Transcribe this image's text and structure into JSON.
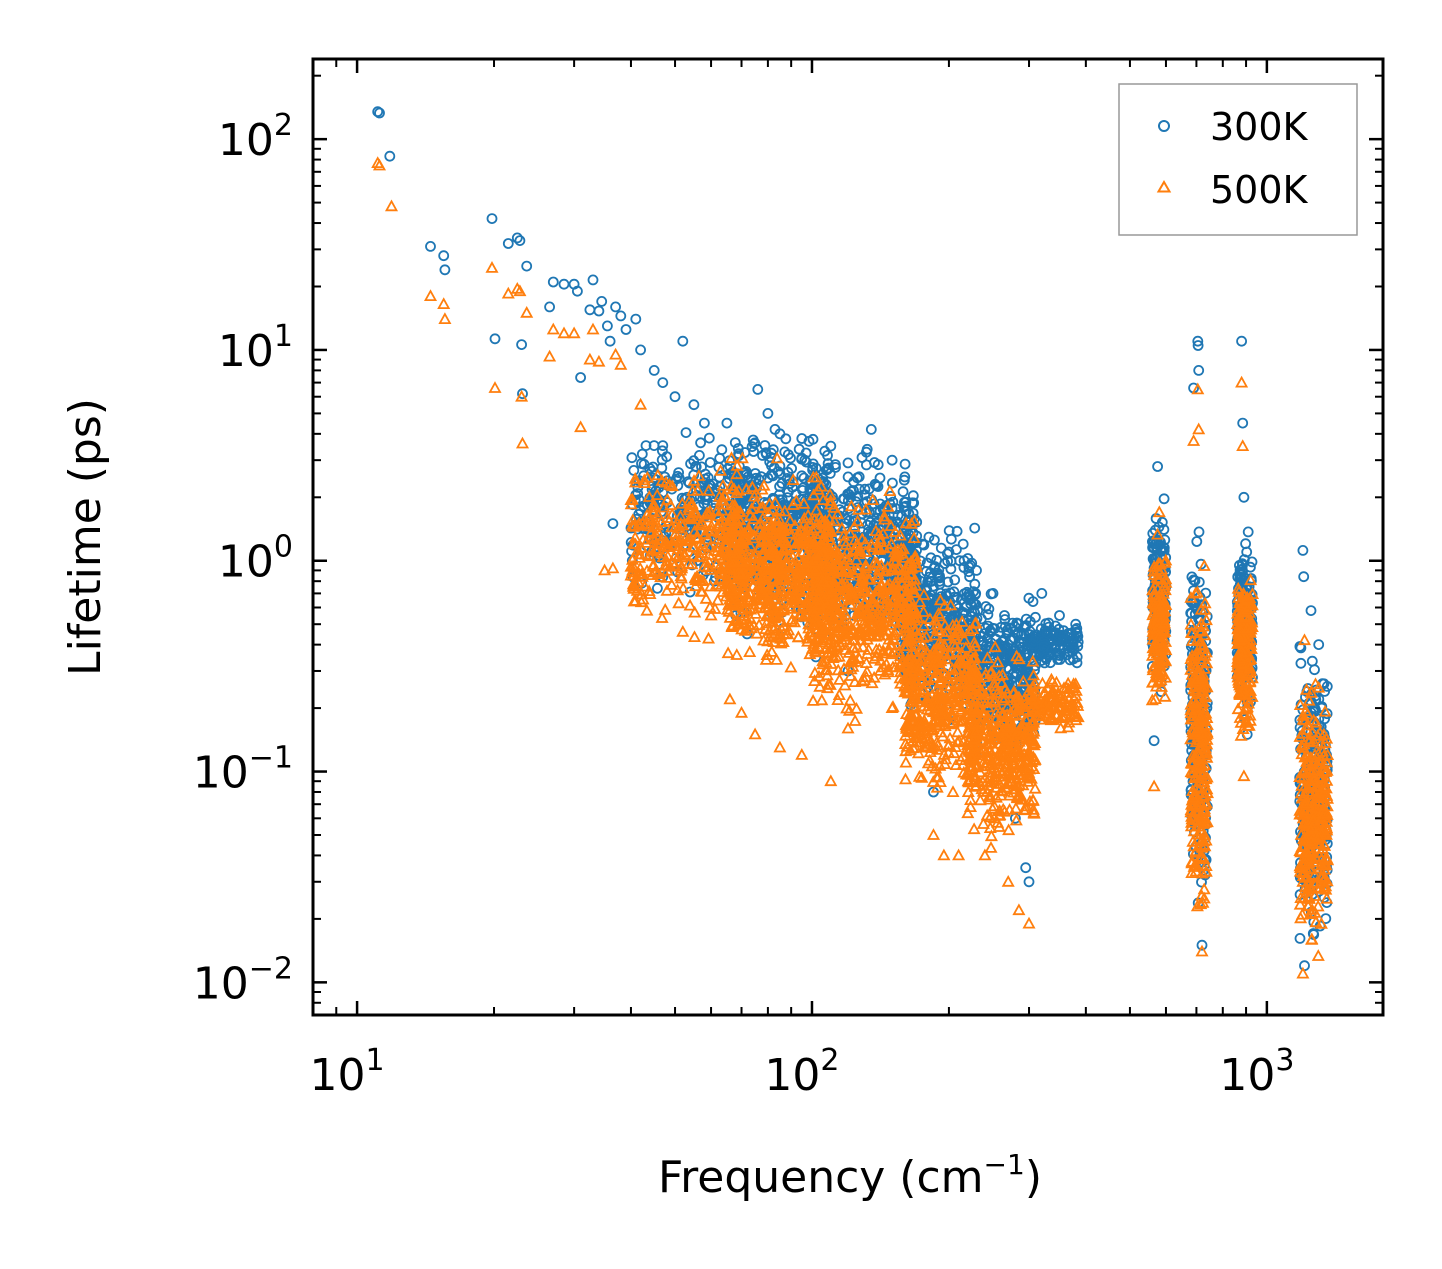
{
  "chart_data": {
    "type": "scatter",
    "xscale": "log",
    "yscale": "log",
    "xlabel": "Frequency (cm",
    "xlabel_sup": "−1",
    "xlabel_end": ")",
    "ylabel": "Lifetime (ps)",
    "xlim": [
      8,
      1800
    ],
    "ylim": [
      0.007,
      240
    ],
    "legend_position": "top-right",
    "x_ticks": [
      {
        "value": 10,
        "base": "10",
        "exp": "1"
      },
      {
        "value": 100,
        "base": "10",
        "exp": "2"
      },
      {
        "value": 1000,
        "base": "10",
        "exp": "3"
      }
    ],
    "y_ticks": [
      {
        "value": 100,
        "base": "10",
        "exp": "2"
      },
      {
        "value": 10,
        "base": "10",
        "exp": "1"
      },
      {
        "value": 1,
        "base": "10",
        "exp": "0"
      },
      {
        "value": 0.1,
        "base": "10",
        "exp": "−1"
      },
      {
        "value": 0.01,
        "base": "10",
        "exp": "−2"
      }
    ],
    "series": [
      {
        "name": "300K",
        "marker": "circle",
        "color": "#1f77b4",
        "points": [
          [
            11.1,
            135
          ],
          [
            11.2,
            133
          ],
          [
            11.8,
            83
          ],
          [
            14.5,
            31
          ],
          [
            15.5,
            28
          ],
          [
            15.6,
            24
          ],
          [
            19.8,
            42
          ],
          [
            20.1,
            11.3
          ],
          [
            21.5,
            32
          ],
          [
            22.5,
            34
          ],
          [
            22.8,
            33
          ],
          [
            23.0,
            10.6
          ],
          [
            23.1,
            6.2
          ],
          [
            23.6,
            25
          ],
          [
            26.5,
            16
          ],
          [
            27.0,
            21
          ],
          [
            28.5,
            20.5
          ],
          [
            30.0,
            20.5
          ],
          [
            30.5,
            19.0
          ],
          [
            31.0,
            7.4
          ],
          [
            32.5,
            15.5
          ],
          [
            33.0,
            21.5
          ],
          [
            34.0,
            15.3
          ],
          [
            34.5,
            17.0
          ],
          [
            35.5,
            13.0
          ],
          [
            36.0,
            11.0
          ],
          [
            36.5,
            1.5
          ],
          [
            37.0,
            16.0
          ],
          [
            38.0,
            14.5
          ],
          [
            39.0,
            12.5
          ],
          [
            40.0,
            1.43
          ],
          [
            41.0,
            14.0
          ],
          [
            42.0,
            10.0
          ],
          [
            45.0,
            8.0
          ],
          [
            47.0,
            7.0
          ],
          [
            50.0,
            6.0
          ],
          [
            52.0,
            11.0
          ],
          [
            55.0,
            5.5
          ],
          [
            58.0,
            4.5
          ],
          [
            61.0,
            0.8
          ],
          [
            65.0,
            4.5
          ],
          [
            68.0,
            0.55
          ],
          [
            72.0,
            0.45
          ],
          [
            76.0,
            6.5
          ],
          [
            80.0,
            5.0
          ],
          [
            85.0,
            4.0
          ],
          [
            95.0,
            3.8
          ],
          [
            102.0,
            0.35
          ],
          [
            110.0,
            3.5
          ],
          [
            120.0,
            0.3
          ],
          [
            135.0,
            4.2
          ],
          [
            150.0,
            3.0
          ],
          [
            160.0,
            2.5
          ],
          [
            175.0,
            1.2
          ],
          [
            185.0,
            0.08
          ],
          [
            200.0,
            1.1
          ],
          [
            215.0,
            1.2
          ],
          [
            230.0,
            0.9
          ],
          [
            250.0,
            0.7
          ],
          [
            265.0,
            0.55
          ],
          [
            280.0,
            0.06
          ],
          [
            295.0,
            0.035
          ],
          [
            300.0,
            0.03
          ],
          [
            320.0,
            0.7
          ],
          [
            350.0,
            0.55
          ],
          [
            380.0,
            0.5
          ],
          [
            575.0,
            2.8
          ],
          [
            580.0,
            0.6
          ],
          [
            565.0,
            0.14
          ],
          [
            690.0,
            6.6
          ],
          [
            705.0,
            11.0
          ],
          [
            706.0,
            10.5
          ],
          [
            708.0,
            8.0
          ],
          [
            712.0,
            0.04
          ],
          [
            720.0,
            0.015
          ],
          [
            880.0,
            11.0
          ],
          [
            885.0,
            4.5
          ],
          [
            890.0,
            2.0
          ],
          [
            895.0,
            0.6
          ],
          [
            905.0,
            0.15
          ],
          [
            1200.0,
            1.12
          ],
          [
            1205.0,
            0.84
          ],
          [
            1210.0,
            0.012
          ],
          [
            1250.0,
            0.58
          ],
          [
            1300.0,
            0.4
          ],
          [
            1320.0,
            0.2
          ]
        ],
        "clusters": [
          {
            "x": [
              40,
              70
            ],
            "y": [
              0.6,
              5.0
            ],
            "n": 260
          },
          {
            "x": [
              65,
              110
            ],
            "y": [
              0.4,
              5.0
            ],
            "n": 560
          },
          {
            "x": [
              100,
              170
            ],
            "y": [
              0.3,
              4.0
            ],
            "n": 520
          },
          {
            "x": [
              160,
              230
            ],
            "y": [
              0.15,
              1.8
            ],
            "n": 380
          },
          {
            "x": [
              220,
              310
            ],
            "y": [
              0.1,
              0.8
            ],
            "n": 380
          },
          {
            "x": [
              300,
              385
            ],
            "y": [
              0.3,
              0.55
            ],
            "n": 140
          },
          {
            "x": [
              560,
              600
            ],
            "y": [
              0.2,
              2.5
            ],
            "n": 160
          },
          {
            "x": [
              680,
              740
            ],
            "y": [
              0.015,
              2.0
            ],
            "n": 260
          },
          {
            "x": [
              860,
              930
            ],
            "y": [
              0.15,
              1.6
            ],
            "n": 200
          },
          {
            "x": [
              1180,
              1360
            ],
            "y": [
              0.012,
              0.5
            ],
            "n": 280
          }
        ]
      },
      {
        "name": "500K",
        "marker": "triangle",
        "color": "#ff7f0e",
        "points": [
          [
            11.1,
            77
          ],
          [
            11.2,
            75
          ],
          [
            11.9,
            48
          ],
          [
            14.5,
            18
          ],
          [
            15.5,
            16.5
          ],
          [
            15.6,
            14
          ],
          [
            19.8,
            24.5
          ],
          [
            20.1,
            6.6
          ],
          [
            21.5,
            18.5
          ],
          [
            22.5,
            19.5
          ],
          [
            22.8,
            19
          ],
          [
            23.0,
            6.0
          ],
          [
            23.1,
            3.6
          ],
          [
            23.6,
            15
          ],
          [
            26.5,
            9.3
          ],
          [
            27.0,
            12.5
          ],
          [
            28.5,
            12.0
          ],
          [
            30.0,
            12.0
          ],
          [
            31.0,
            4.3
          ],
          [
            32.5,
            9.0
          ],
          [
            33.0,
            12.5
          ],
          [
            34.0,
            8.8
          ],
          [
            35.0,
            0.9
          ],
          [
            36.5,
            0.92
          ],
          [
            37.0,
            9.5
          ],
          [
            38.0,
            8.5
          ],
          [
            40.0,
            0.85
          ],
          [
            42.0,
            5.5
          ],
          [
            48.0,
            0.72
          ],
          [
            52.0,
            0.46
          ],
          [
            60.0,
            0.55
          ],
          [
            66.0,
            0.22
          ],
          [
            70.0,
            0.19
          ],
          [
            75.0,
            0.15
          ],
          [
            85.0,
            0.13
          ],
          [
            95.0,
            0.12
          ],
          [
            110.0,
            0.09
          ],
          [
            120.0,
            0.16
          ],
          [
            150.0,
            0.2
          ],
          [
            185.0,
            0.05
          ],
          [
            195.0,
            0.04
          ],
          [
            210.0,
            0.04
          ],
          [
            240.0,
            0.04
          ],
          [
            270.0,
            0.03
          ],
          [
            285.0,
            0.022
          ],
          [
            300.0,
            0.019
          ],
          [
            350.0,
            0.2
          ],
          [
            380.0,
            0.26
          ],
          [
            565.0,
            0.085
          ],
          [
            580.0,
            1.7
          ],
          [
            690.0,
            3.7
          ],
          [
            705.0,
            6.5
          ],
          [
            708.0,
            4.2
          ],
          [
            720.0,
            0.014
          ],
          [
            880.0,
            7.0
          ],
          [
            885.0,
            3.5
          ],
          [
            890.0,
            0.095
          ],
          [
            1200.0,
            0.011
          ],
          [
            1210.0,
            0.42
          ],
          [
            1300.0,
            0.25
          ],
          [
            1330.0,
            0.1
          ]
        ],
        "clusters": [
          {
            "x": [
              40,
              70
            ],
            "y": [
              0.4,
              3.5
            ],
            "n": 320
          },
          {
            "x": [
              65,
              110
            ],
            "y": [
              0.25,
              3.2
            ],
            "n": 640
          },
          {
            "x": [
              100,
              170
            ],
            "y": [
              0.15,
              2.5
            ],
            "n": 600
          },
          {
            "x": [
              160,
              230
            ],
            "y": [
              0.06,
              0.9
            ],
            "n": 420
          },
          {
            "x": [
              220,
              310
            ],
            "y": [
              0.04,
              0.45
            ],
            "n": 420
          },
          {
            "x": [
              300,
              385
            ],
            "y": [
              0.15,
              0.3
            ],
            "n": 120
          },
          {
            "x": [
              560,
              600
            ],
            "y": [
              0.15,
              1.5
            ],
            "n": 160
          },
          {
            "x": [
              680,
              740
            ],
            "y": [
              0.014,
              1.4
            ],
            "n": 260
          },
          {
            "x": [
              860,
              930
            ],
            "y": [
              0.12,
              1.1
            ],
            "n": 200
          },
          {
            "x": [
              1180,
              1360
            ],
            "y": [
              0.011,
              0.35
            ],
            "n": 300
          }
        ]
      }
    ]
  }
}
